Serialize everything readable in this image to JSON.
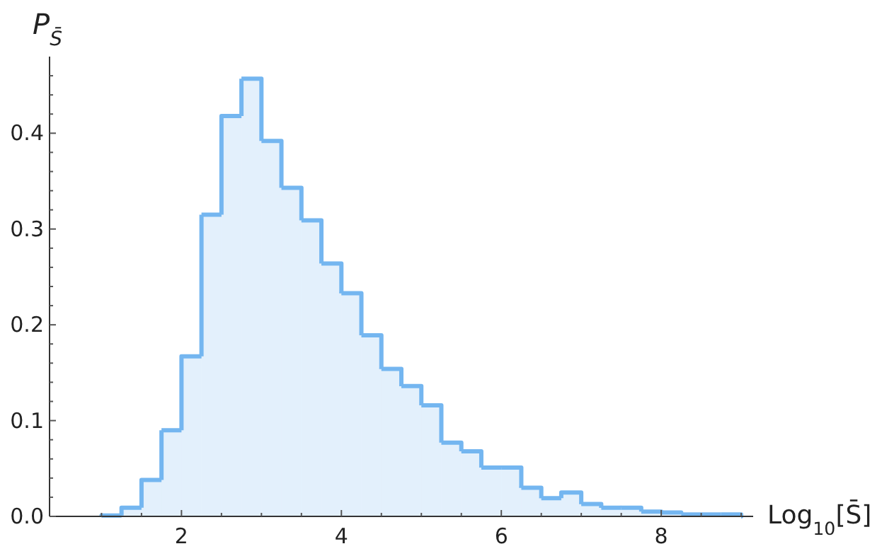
{
  "chart_data": {
    "type": "histogram",
    "xlabel": "Log$_{10}$[S̄]",
    "ylabel": "P$_{S̄}$",
    "bins": [
      1,
      1.25,
      1.5,
      1.75,
      2,
      2.25,
      2.5,
      2.75,
      3,
      3.25,
      3.5,
      3.75,
      4,
      4.25,
      4.5,
      4.75,
      5,
      5.25,
      5.5,
      5.75,
      6,
      6.25,
      6.5,
      6.75,
      7,
      7.25,
      7.5,
      7.75,
      8,
      8.25,
      8.5,
      8.75,
      9
    ],
    "values": [
      0.001,
      0.009,
      0.038,
      0.09,
      0.167,
      0.315,
      0.418,
      0.457,
      0.392,
      0.343,
      0.309,
      0.264,
      0.233,
      0.189,
      0.154,
      0.136,
      0.116,
      0.077,
      0.068,
      0.051,
      0.051,
      0.03,
      0.019,
      0.025,
      0.013,
      0.009,
      0.009,
      0.005,
      0.004,
      0.002,
      0.002,
      0.002
    ],
    "color": "#74b6f0",
    "xlim": [
      0.35,
      9.15
    ],
    "ylim": [
      0,
      0.48
    ],
    "xticks": [
      {
        "value": 1,
        "label": null
      },
      {
        "value": 1.5,
        "label": null
      },
      2,
      {
        "value": 2.5,
        "label": null
      },
      {
        "value": 3,
        "label": null
      },
      {
        "value": 3.5,
        "label": null
      },
      4,
      {
        "value": 4.5,
        "label": null
      },
      {
        "value": 5,
        "label": null
      },
      {
        "value": 5.5,
        "label": null
      },
      6,
      {
        "value": 6.5,
        "label": null
      },
      {
        "value": 7,
        "label": null
      },
      {
        "value": 7.5,
        "label": null
      },
      8,
      {
        "value": 8.5,
        "label": null
      },
      {
        "value": 9,
        "label": null
      }
    ],
    "yticks": [
      {
        "value": 0,
        "label": "0.0"
      },
      {
        "value": 0.02,
        "label": null
      },
      {
        "value": 0.04,
        "label": null
      },
      {
        "value": 0.06,
        "label": null
      },
      {
        "value": 0.08,
        "label": null
      },
      0.1,
      {
        "value": 0.12,
        "label": null
      },
      {
        "value": 0.14,
        "label": null
      },
      {
        "value": 0.16,
        "label": null
      },
      {
        "value": 0.18,
        "label": null
      },
      0.2,
      {
        "value": 0.22,
        "label": null
      },
      {
        "value": 0.24,
        "label": null
      },
      {
        "value": 0.26,
        "label": null
      },
      {
        "value": 0.28,
        "label": null
      },
      0.3,
      {
        "value": 0.32,
        "label": null
      },
      {
        "value": 0.34,
        "label": null
      },
      {
        "value": 0.36,
        "label": null
      },
      {
        "value": 0.38,
        "label": null
      },
      0.4,
      {
        "value": 0.42,
        "label": null
      },
      {
        "value": 0.44,
        "label": null
      },
      {
        "value": 0.46,
        "label": null
      }
    ],
    "grid": false
  }
}
